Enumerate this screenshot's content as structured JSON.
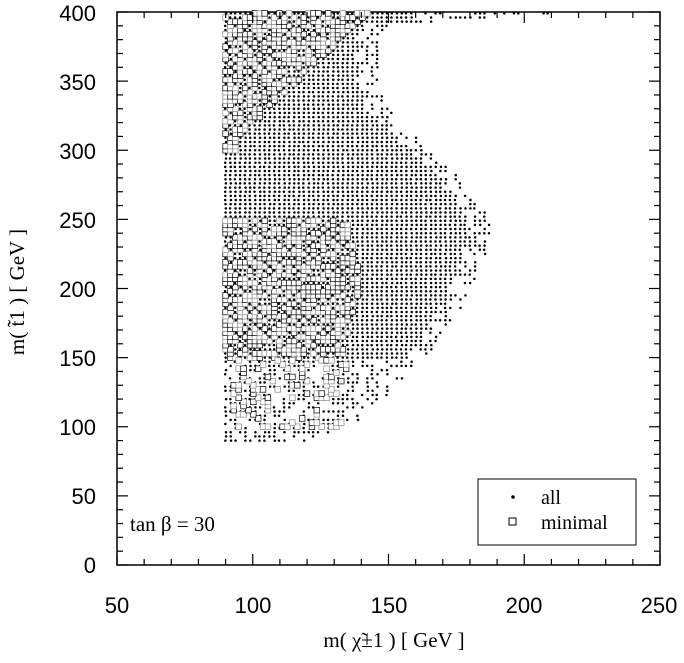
{
  "chart_data": {
    "type": "scatter",
    "title": "",
    "xlabel": "m( χ̃±1 )  [ GeV ]",
    "ylabel": "m( t̃1 )  [ GeV ]",
    "xlim": [
      50,
      250
    ],
    "ylim": [
      0,
      400
    ],
    "x_ticks": [
      50,
      100,
      150,
      200,
      250
    ],
    "y_ticks": [
      0,
      50,
      100,
      150,
      200,
      250,
      300,
      350,
      400
    ],
    "x_tick_labels": [
      "50",
      "100",
      "150",
      "200",
      "250"
    ],
    "y_tick_labels": [
      "0",
      "50",
      "100",
      "150",
      "200",
      "250",
      "300",
      "350",
      "400"
    ],
    "annotation": "tan β = 30",
    "legend": {
      "position": "bottom-right",
      "entries": [
        "all",
        "minimal"
      ]
    },
    "grid": false,
    "series": [
      {
        "name": "all",
        "marker": "dot",
        "region_left_x": 90,
        "y_min": 90,
        "y_max": 400,
        "right_edge": [
          {
            "y": 90,
            "x": 130
          },
          {
            "y": 100,
            "x": 137
          },
          {
            "y": 110,
            "x": 143
          },
          {
            "y": 120,
            "x": 148
          },
          {
            "y": 130,
            "x": 155
          },
          {
            "y": 140,
            "x": 160
          },
          {
            "y": 150,
            "x": 165
          },
          {
            "y": 160,
            "x": 168
          },
          {
            "y": 170,
            "x": 170
          },
          {
            "y": 180,
            "x": 175
          },
          {
            "y": 190,
            "x": 178
          },
          {
            "y": 200,
            "x": 180
          },
          {
            "y": 210,
            "x": 183
          },
          {
            "y": 220,
            "x": 185
          },
          {
            "y": 230,
            "x": 186
          },
          {
            "y": 240,
            "x": 188
          },
          {
            "y": 250,
            "x": 187
          },
          {
            "y": 260,
            "x": 184
          },
          {
            "y": 270,
            "x": 180
          },
          {
            "y": 280,
            "x": 176
          },
          {
            "y": 290,
            "x": 170
          },
          {
            "y": 300,
            "x": 165
          },
          {
            "y": 310,
            "x": 160
          },
          {
            "y": 320,
            "x": 155
          },
          {
            "y": 330,
            "x": 150
          },
          {
            "y": 340,
            "x": 148
          },
          {
            "y": 350,
            "x": 146
          },
          {
            "y": 360,
            "x": 146
          },
          {
            "y": 370,
            "x": 146
          },
          {
            "y": 380,
            "x": 146
          },
          {
            "y": 390,
            "x": 150
          },
          {
            "y": 400,
            "x": 220
          }
        ]
      },
      {
        "name": "minimal",
        "marker": "open-square",
        "clusters": [
          {
            "y_min": 300,
            "y_max": 400,
            "x_min": 90,
            "x_max": 143
          },
          {
            "y_min": 150,
            "y_max": 250,
            "x_min": 90,
            "x_max": 140
          },
          {
            "y_min": 100,
            "y_max": 150,
            "x_min": 93,
            "x_max": 135
          }
        ]
      }
    ]
  }
}
